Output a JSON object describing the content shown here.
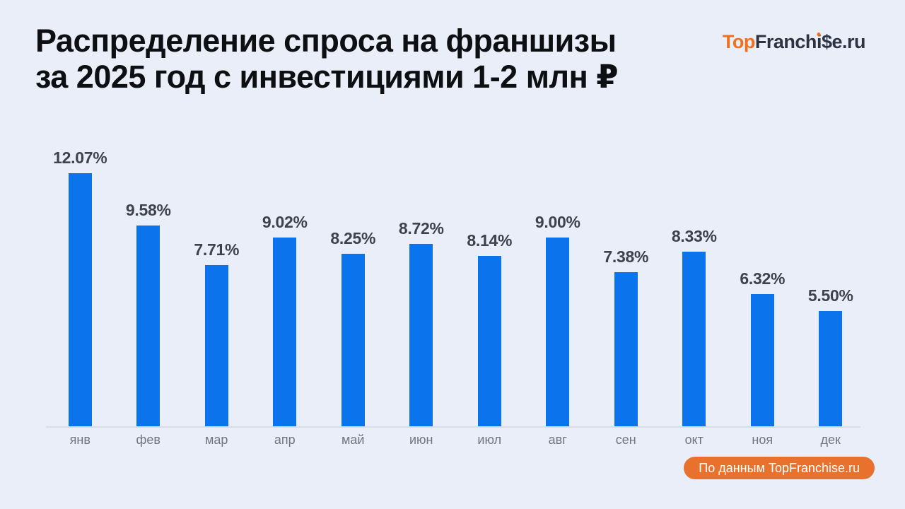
{
  "page": {
    "background": "#EAEEF8"
  },
  "header": {
    "title_line1": "Распределение спроса на франшизы",
    "title_line2": "за 2025 год с инвестициями 1-2 млн ₽"
  },
  "logo": {
    "p1": "Top",
    "p2": "Franch",
    "p3": "i",
    "p4": "$e.ru",
    "orange": "#F0701F",
    "dark": "#2C3342"
  },
  "chart_data": {
    "type": "bar",
    "title": "Распределение спроса на франшизы за 2025 год с инвестициями 1-2 млн ₽",
    "categories": [
      "янв",
      "фев",
      "мар",
      "апр",
      "май",
      "июн",
      "июл",
      "авг",
      "сен",
      "окт",
      "ноя",
      "дек"
    ],
    "values": [
      12.07,
      9.58,
      7.71,
      9.02,
      8.25,
      8.72,
      8.14,
      9.0,
      7.38,
      8.33,
      6.32,
      5.5
    ],
    "value_suffix": "%",
    "xlabel": "",
    "ylabel": "",
    "ylim": [
      0,
      12.07
    ],
    "grid": false,
    "legend": false,
    "bar_color": "#0B74EC",
    "value_label_color": "#3C424E",
    "axis_label_color": "#6F7582",
    "axis_line_color": "#D8DDE7"
  },
  "footer_badge": {
    "text": "По данным TopFranchise.ru",
    "background": "#E8712E",
    "text_color": "#FFFFFF"
  }
}
